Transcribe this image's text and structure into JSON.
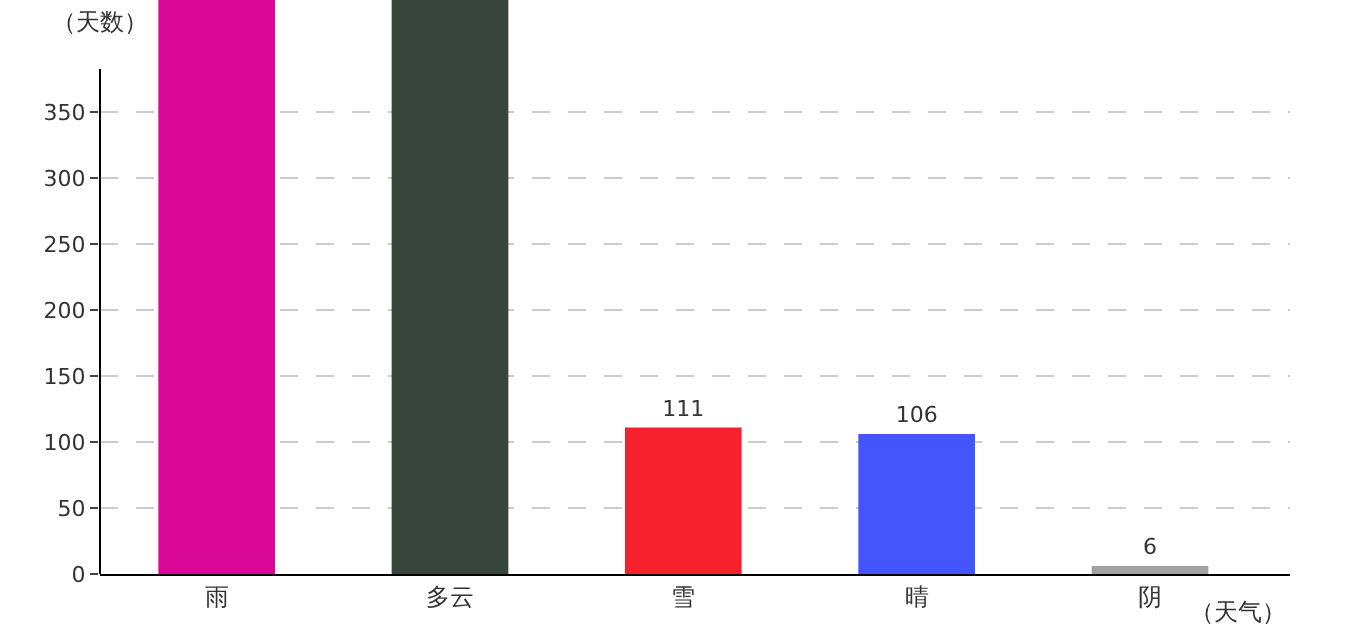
{
  "chart_data": {
    "type": "bar",
    "xlabel": "（天气）",
    "ylabel": "（天数）",
    "categories": [
      "雨",
      "多云",
      "雪",
      "晴",
      "阴"
    ],
    "values": [
      435,
      435,
      111,
      106,
      6
    ],
    "colors": [
      "#da0896",
      "#37453c",
      "#f5222d",
      "#4455fc",
      "#a3a3a3"
    ],
    "value_labels": [
      null,
      null,
      "111",
      "106",
      "6"
    ],
    "ylim": [
      0,
      435
    ],
    "yticks": [
      0,
      50,
      100,
      150,
      200,
      250,
      300,
      350
    ],
    "grid": "y"
  }
}
